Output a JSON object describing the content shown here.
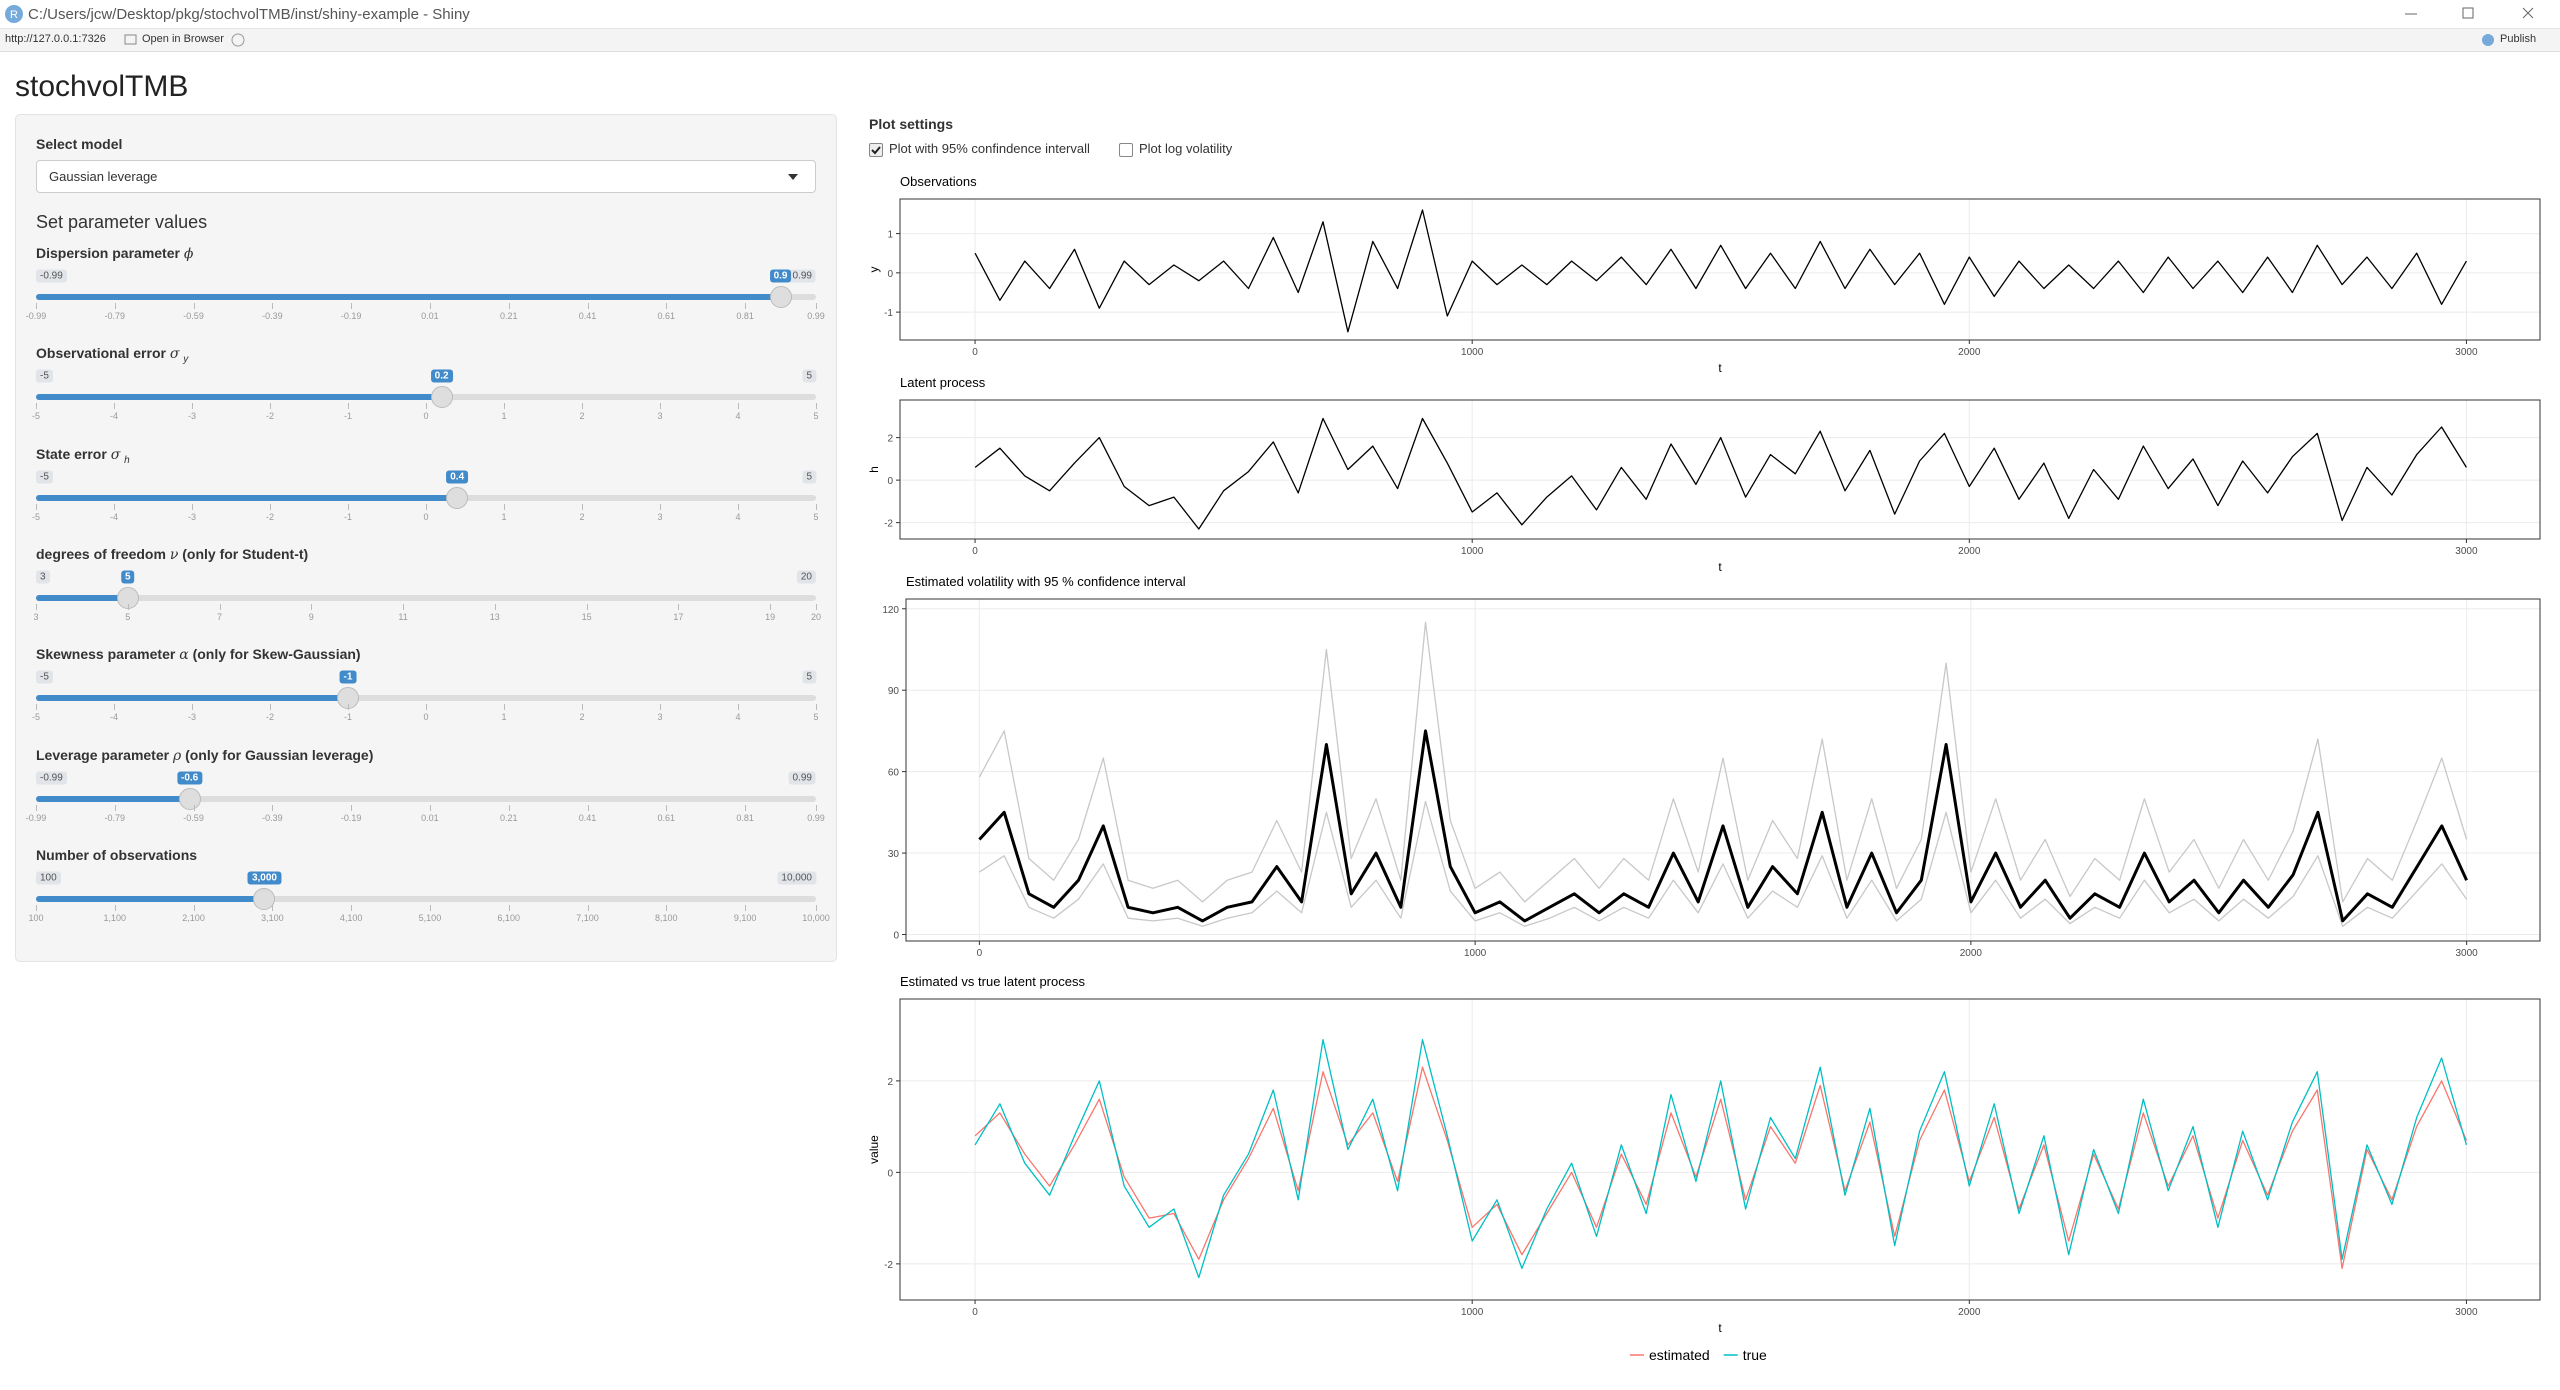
{
  "window": {
    "title": "C:/Users/jcw/Desktop/pkg/stochvolTMB/inst/shiny-example - Shiny",
    "address": "http://127.0.0.1:7326",
    "open_in_browser": "Open in Browser",
    "publish": "Publish"
  },
  "app_title": "stochvolTMB",
  "sidebar": {
    "select_label": "Select model",
    "select_value": "Gaussian leverage",
    "section": "Set parameter values",
    "sliders": [
      {
        "prefix": "Dispersion parameter",
        "symbol": "ϕ",
        "min": -0.99,
        "max": 0.99,
        "value": 0.9,
        "ticks": [
          -0.99,
          -0.79,
          -0.59,
          -0.39,
          -0.19,
          0.01,
          0.21,
          0.41,
          0.61,
          0.81,
          0.99
        ]
      },
      {
        "prefix": "Observational error",
        "symbol": "σ",
        "sub": "y",
        "min": -5,
        "max": 5,
        "value": 0.2,
        "ticks": [
          -5,
          -4,
          -3,
          -2,
          -1,
          0,
          1,
          2,
          3,
          4,
          5
        ]
      },
      {
        "prefix": "State error",
        "symbol": "σ",
        "sub": "h",
        "min": -5,
        "max": 5,
        "value": 0.4,
        "ticks": [
          -5,
          -4,
          -3,
          -2,
          -1,
          0,
          1,
          2,
          3,
          4,
          5
        ]
      },
      {
        "prefix": "degrees of freedom",
        "symbol": "ν",
        "suffix": "(only for Student-t)",
        "min": 3,
        "max": 20,
        "value": 5,
        "ticks": [
          3,
          5,
          7,
          9,
          11,
          13,
          15,
          17,
          19,
          20
        ]
      },
      {
        "prefix": "Skewness parameter",
        "symbol": "α",
        "suffix": "(only for Skew-Gaussian)",
        "min": -5,
        "max": 5,
        "value": -1,
        "ticks": [
          -5,
          -4,
          -3,
          -2,
          -1,
          0,
          1,
          2,
          3,
          4,
          5
        ]
      },
      {
        "prefix": "Leverage parameter",
        "symbol": "ρ",
        "suffix": "(only for Gaussian leverage)",
        "min": -0.99,
        "max": 0.99,
        "value": -0.6,
        "ticks": [
          -0.99,
          -0.79,
          -0.59,
          -0.39,
          -0.19,
          0.01,
          0.21,
          0.41,
          0.61,
          0.81,
          0.99
        ]
      },
      {
        "prefix": "Number of observations",
        "min": 100,
        "max": {
          "value": 10000,
          "label": "10,000"
        },
        "value": {
          "value": 3000,
          "label": "3,000"
        },
        "ticks": [
          100,
          {
            "value": 1100,
            "label": "1,100"
          },
          {
            "value": 2100,
            "label": "2,100"
          },
          {
            "value": 3100,
            "label": "3,100"
          },
          {
            "value": 4100,
            "label": "4,100"
          },
          {
            "value": 5100,
            "label": "5,100"
          },
          {
            "value": 6100,
            "label": "6,100"
          },
          {
            "value": 7100,
            "label": "7,100"
          },
          {
            "value": 8100,
            "label": "8,100"
          },
          {
            "value": 9100,
            "label": "9,100"
          },
          {
            "value": 10000,
            "label": "10,000"
          }
        ]
      }
    ]
  },
  "plot_settings": {
    "title": "Plot settings",
    "options": [
      {
        "label": "Plot with 95% confindence intervall",
        "checked": true
      },
      {
        "label": "Plot log volatility",
        "checked": false
      }
    ]
  },
  "chart_data": [
    {
      "type": "line",
      "title": "Observations",
      "xlabel": "t",
      "ylabel": "y",
      "grid": true,
      "xlim": [
        -151,
        3148
      ],
      "ylim": [
        -1.71,
        1.88
      ],
      "xticks": [
        0,
        1000,
        2000,
        3000
      ],
      "yticks": [
        -1,
        0,
        1
      ],
      "x": [
        0,
        50,
        100,
        150,
        200,
        250,
        300,
        350,
        400,
        450,
        500,
        550,
        600,
        650,
        700,
        750,
        800,
        850,
        900,
        950,
        1000,
        1050,
        1100,
        1150,
        1200,
        1250,
        1300,
        1350,
        1400,
        1450,
        1500,
        1550,
        1600,
        1650,
        1700,
        1750,
        1800,
        1850,
        1900,
        1950,
        2000,
        2050,
        2100,
        2150,
        2200,
        2250,
        2300,
        2350,
        2400,
        2450,
        2500,
        2550,
        2600,
        2650,
        2700,
        2750,
        2800,
        2850,
        2900,
        2950,
        3000
      ],
      "series": [
        {
          "color": "#000000",
          "values": [
            0.5,
            -0.7,
            0.3,
            -0.4,
            0.6,
            -0.9,
            0.3,
            -0.3,
            0.2,
            -0.2,
            0.3,
            -0.4,
            0.9,
            -0.5,
            1.3,
            -1.5,
            0.8,
            -0.4,
            1.6,
            -1.1,
            0.3,
            -0.3,
            0.2,
            -0.3,
            0.3,
            -0.2,
            0.4,
            -0.3,
            0.6,
            -0.4,
            0.7,
            -0.4,
            0.5,
            -0.4,
            0.8,
            -0.4,
            0.6,
            -0.3,
            0.5,
            -0.8,
            0.4,
            -0.6,
            0.3,
            -0.4,
            0.2,
            -0.4,
            0.3,
            -0.5,
            0.4,
            -0.4,
            0.3,
            -0.5,
            0.4,
            -0.5,
            0.7,
            -0.3,
            0.4,
            -0.4,
            0.5,
            -0.8,
            0.3
          ]
        }
      ]
    },
    {
      "type": "line",
      "title": "Latent process",
      "xlabel": "t",
      "ylabel": "h",
      "grid": true,
      "xlim": [
        -151,
        3148
      ],
      "ylim": [
        -2.77,
        3.77
      ],
      "xticks": [
        0,
        1000,
        2000,
        3000
      ],
      "yticks": [
        -2,
        0,
        2
      ],
      "x": [
        0,
        50,
        100,
        150,
        200,
        250,
        300,
        350,
        400,
        450,
        500,
        550,
        600,
        650,
        700,
        750,
        800,
        850,
        900,
        950,
        1000,
        1050,
        1100,
        1150,
        1200,
        1250,
        1300,
        1350,
        1400,
        1450,
        1500,
        1550,
        1600,
        1650,
        1700,
        1750,
        1800,
        1850,
        1900,
        1950,
        2000,
        2050,
        2100,
        2150,
        2200,
        2250,
        2300,
        2350,
        2400,
        2450,
        2500,
        2550,
        2600,
        2650,
        2700,
        2750,
        2800,
        2850,
        2900,
        2950,
        3000
      ],
      "series": [
        {
          "color": "#000000",
          "values": [
            0.6,
            1.5,
            0.2,
            -0.5,
            0.8,
            2.0,
            -0.3,
            -1.2,
            -0.8,
            -2.3,
            -0.5,
            0.4,
            1.8,
            -0.6,
            2.9,
            0.5,
            1.6,
            -0.4,
            2.9,
            0.8,
            -1.5,
            -0.6,
            -2.1,
            -0.8,
            0.2,
            -1.4,
            0.6,
            -0.9,
            1.7,
            -0.2,
            2.0,
            -0.8,
            1.2,
            0.3,
            2.3,
            -0.5,
            1.4,
            -1.6,
            0.9,
            2.2,
            -0.3,
            1.5,
            -0.9,
            0.8,
            -1.8,
            0.5,
            -0.9,
            1.6,
            -0.4,
            1.0,
            -1.2,
            0.9,
            -0.6,
            1.1,
            2.2,
            -1.9,
            0.6,
            -0.7,
            1.2,
            2.5,
            0.6
          ]
        }
      ]
    },
    {
      "type": "line",
      "title": "Estimated volatility with 95 % confidence interval",
      "grid": true,
      "xlim": [
        -148,
        3148
      ],
      "ylim": [
        -2.4,
        123.6
      ],
      "xticks": [
        0,
        1000,
        2000,
        3000
      ],
      "yticks": [
        0,
        30,
        60,
        90,
        120
      ],
      "x": [
        0,
        50,
        100,
        150,
        200,
        250,
        300,
        350,
        400,
        450,
        500,
        550,
        600,
        650,
        700,
        750,
        800,
        850,
        900,
        950,
        1000,
        1050,
        1100,
        1150,
        1200,
        1250,
        1300,
        1350,
        1400,
        1450,
        1500,
        1550,
        1600,
        1650,
        1700,
        1750,
        1800,
        1850,
        1900,
        1950,
        2000,
        2050,
        2100,
        2150,
        2200,
        2250,
        2300,
        2350,
        2400,
        2450,
        2500,
        2550,
        2600,
        2650,
        2700,
        2750,
        2800,
        2850,
        2900,
        2950,
        3000
      ],
      "series": [
        {
          "color": "#c8c8c8",
          "values": [
            23,
            29,
            10,
            6,
            13,
            26,
            6,
            5,
            6,
            3,
            6,
            8,
            16,
            8,
            45,
            10,
            20,
            6,
            49,
            16,
            5,
            8,
            3,
            6,
            10,
            5,
            10,
            6,
            20,
            8,
            26,
            6,
            16,
            10,
            29,
            6,
            20,
            5,
            13,
            45,
            8,
            20,
            6,
            13,
            4,
            10,
            6,
            20,
            8,
            13,
            5,
            13,
            6,
            14,
            29,
            3,
            10,
            6,
            16,
            26,
            13
          ]
        },
        {
          "color": "#c8c8c8",
          "values": [
            58,
            75,
            28,
            20,
            35,
            65,
            20,
            17,
            20,
            12,
            20,
            23,
            42,
            23,
            105,
            28,
            50,
            20,
            115,
            42,
            17,
            23,
            12,
            20,
            28,
            17,
            28,
            20,
            50,
            23,
            65,
            20,
            42,
            28,
            72,
            20,
            50,
            17,
            35,
            100,
            23,
            50,
            20,
            35,
            14,
            28,
            20,
            50,
            23,
            35,
            17,
            35,
            20,
            38,
            72,
            12,
            28,
            20,
            42,
            65,
            35
          ]
        },
        {
          "color": "#000000",
          "values": [
            35,
            45,
            15,
            10,
            20,
            40,
            10,
            8,
            10,
            5,
            10,
            12,
            25,
            12,
            70,
            15,
            30,
            10,
            75,
            25,
            8,
            12,
            5,
            10,
            15,
            8,
            15,
            10,
            30,
            12,
            40,
            10,
            25,
            15,
            45,
            10,
            30,
            8,
            20,
            70,
            12,
            30,
            10,
            20,
            6,
            15,
            10,
            30,
            12,
            20,
            8,
            20,
            10,
            22,
            45,
            5,
            15,
            10,
            25,
            40,
            20
          ]
        }
      ]
    },
    {
      "type": "line",
      "title": "Estimated vs true latent process",
      "xlabel": "t",
      "ylabel": "value",
      "grid": true,
      "xlim": [
        -151,
        3148
      ],
      "ylim": [
        -2.79,
        3.79
      ],
      "xticks": [
        0,
        1000,
        2000,
        3000
      ],
      "yticks": [
        -2,
        0,
        2
      ],
      "x": [
        0,
        50,
        100,
        150,
        200,
        250,
        300,
        350,
        400,
        450,
        500,
        550,
        600,
        650,
        700,
        750,
        800,
        850,
        900,
        950,
        1000,
        1050,
        1100,
        1150,
        1200,
        1250,
        1300,
        1350,
        1400,
        1450,
        1500,
        1550,
        1600,
        1650,
        1700,
        1750,
        1800,
        1850,
        1900,
        1950,
        2000,
        2050,
        2100,
        2150,
        2200,
        2250,
        2300,
        2350,
        2400,
        2450,
        2500,
        2550,
        2600,
        2650,
        2700,
        2750,
        2800,
        2850,
        2900,
        2950,
        3000
      ],
      "series": [
        {
          "name": "estimated",
          "color": "#F8766D",
          "values": [
            0.8,
            1.3,
            0.4,
            -0.3,
            0.6,
            1.6,
            -0.1,
            -1.0,
            -0.9,
            -1.9,
            -0.6,
            0.3,
            1.4,
            -0.4,
            2.2,
            0.6,
            1.3,
            -0.2,
            2.3,
            0.7,
            -1.2,
            -0.7,
            -1.8,
            -0.9,
            0.0,
            -1.2,
            0.4,
            -0.7,
            1.3,
            -0.1,
            1.6,
            -0.6,
            1.0,
            0.2,
            1.9,
            -0.4,
            1.1,
            -1.4,
            0.7,
            1.8,
            -0.2,
            1.2,
            -0.8,
            0.6,
            -1.5,
            0.4,
            -0.8,
            1.3,
            -0.3,
            0.8,
            -1.0,
            0.7,
            -0.5,
            0.9,
            1.8,
            -2.1,
            0.5,
            -0.6,
            1.0,
            2.0,
            0.7
          ]
        },
        {
          "name": "true",
          "color": "#00BFC4",
          "values": [
            0.6,
            1.5,
            0.2,
            -0.5,
            0.8,
            2.0,
            -0.3,
            -1.2,
            -0.8,
            -2.3,
            -0.5,
            0.4,
            1.8,
            -0.6,
            2.9,
            0.5,
            1.6,
            -0.4,
            2.9,
            0.8,
            -1.5,
            -0.6,
            -2.1,
            -0.8,
            0.2,
            -1.4,
            0.6,
            -0.9,
            1.7,
            -0.2,
            2.0,
            -0.8,
            1.2,
            0.3,
            2.3,
            -0.5,
            1.4,
            -1.6,
            0.9,
            2.2,
            -0.3,
            1.5,
            -0.9,
            0.8,
            -1.8,
            0.5,
            -0.9,
            1.6,
            -0.4,
            1.0,
            -1.2,
            0.9,
            -0.6,
            1.1,
            2.2,
            -1.9,
            0.6,
            -0.7,
            1.2,
            2.5,
            0.6
          ]
        }
      ]
    }
  ]
}
